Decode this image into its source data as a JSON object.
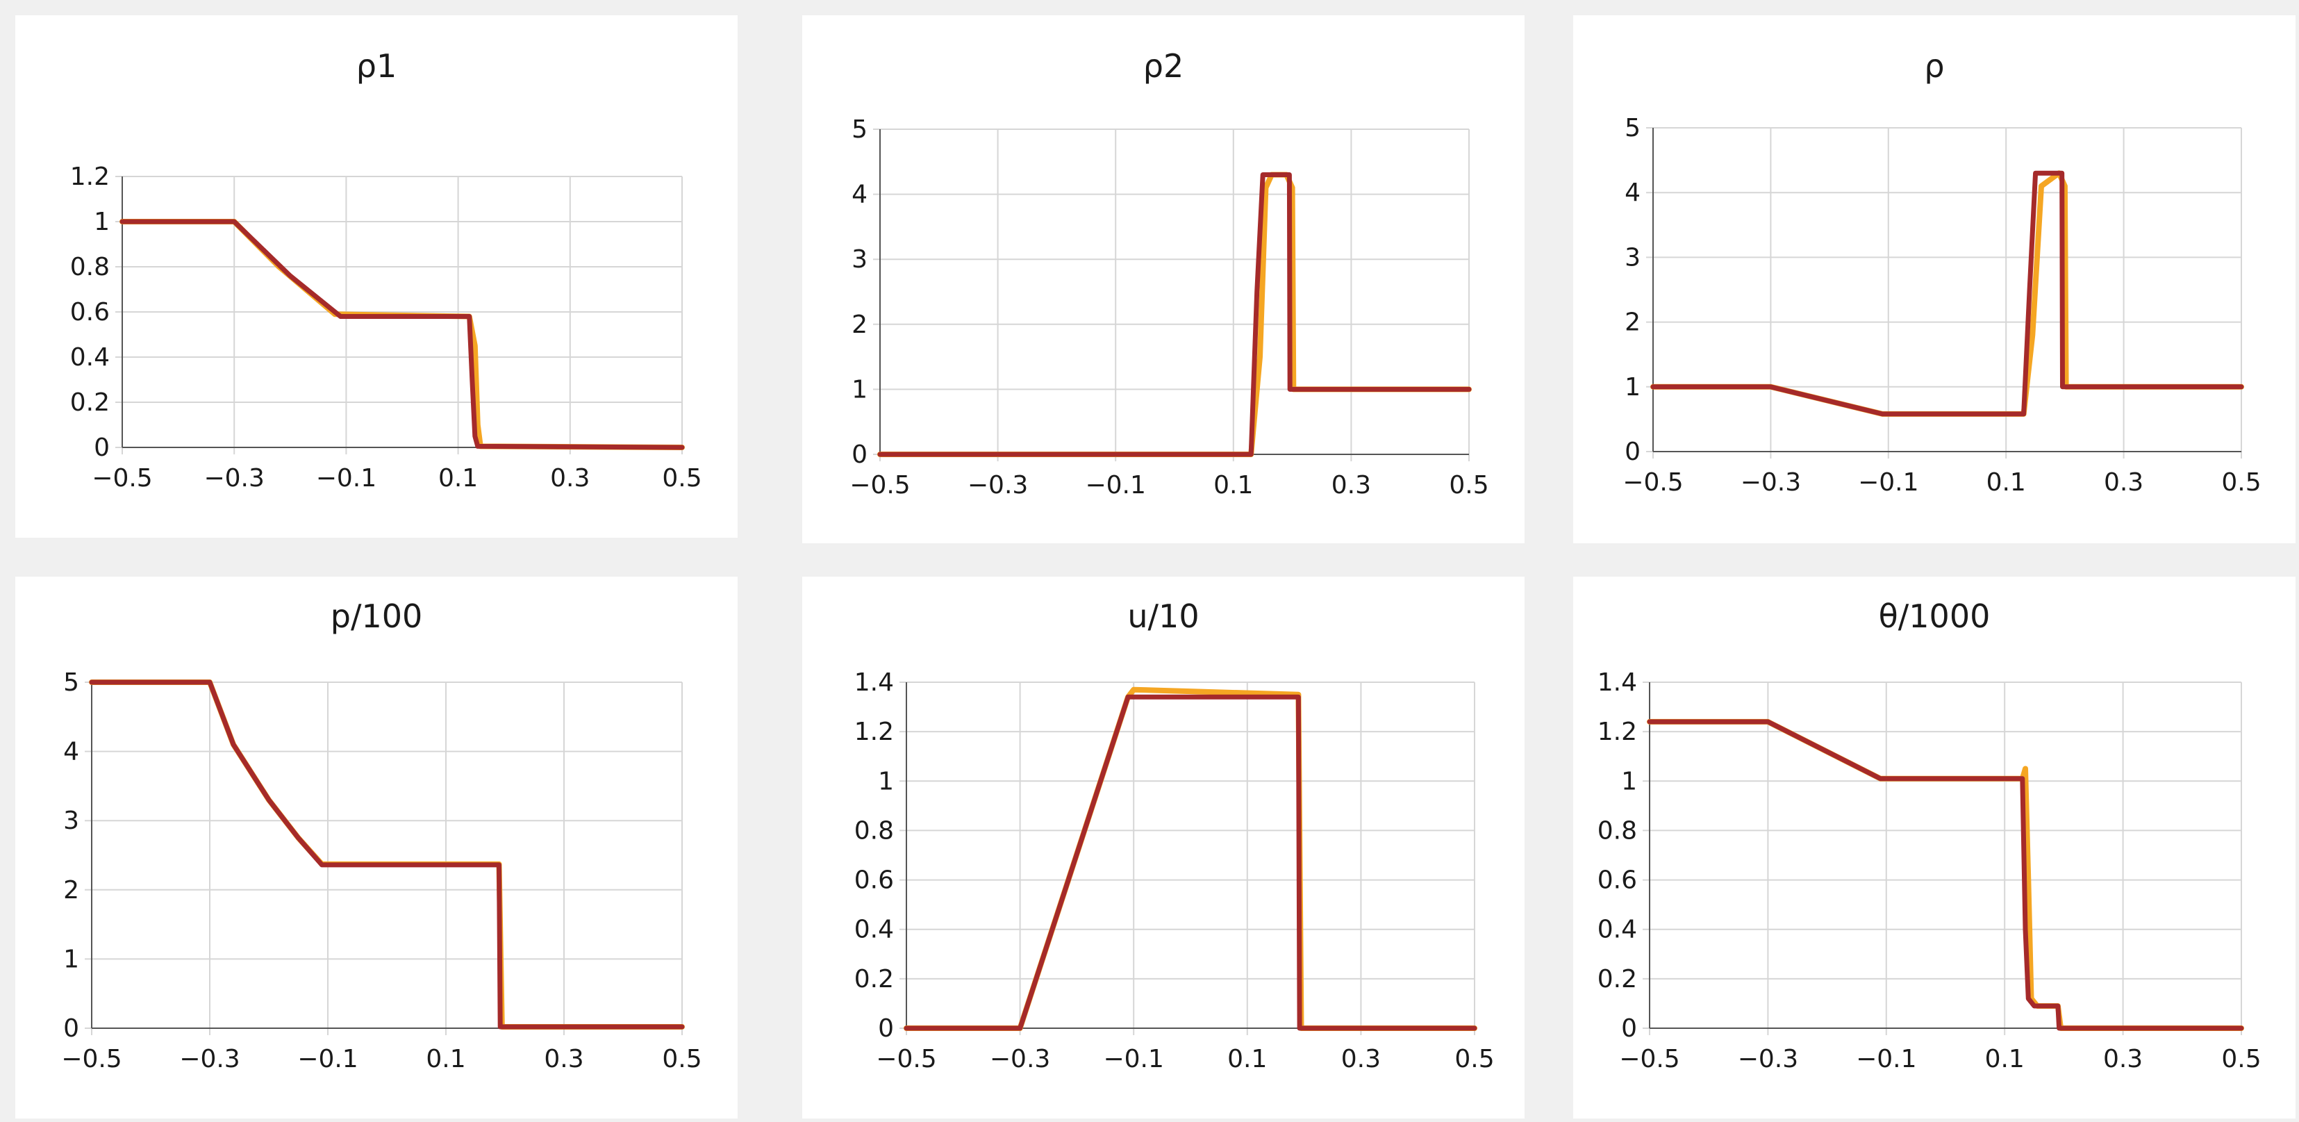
{
  "colors": {
    "background": "#f0f0f0",
    "panel": "#ffffff",
    "grid": "#d6d6d6",
    "axis": "#555555",
    "line_main": "#a52a2a",
    "line_secondary": "#f5a623"
  },
  "chart_data": [
    {
      "type": "line",
      "title": "ρ1",
      "xlim": [
        -0.5,
        0.5
      ],
      "xticks": [
        "-0.5",
        "-0.3",
        "-0.1",
        "0.1",
        "0.3",
        "0.5"
      ],
      "ylim": [
        0,
        1.2
      ],
      "yticks": [
        "0",
        "0.2",
        "0.4",
        "0.6",
        "0.8",
        "1",
        "1.2"
      ],
      "grid": true,
      "series": [
        {
          "color": "#f5a623",
          "x": [
            -0.5,
            -0.3,
            -0.22,
            -0.12,
            0.12,
            0.13,
            0.135,
            0.14,
            0.5
          ],
          "y": [
            1,
            1,
            0.8,
            0.59,
            0.58,
            0.45,
            0.1,
            0.005,
            0
          ]
        },
        {
          "color": "#a52a2a",
          "x": [
            -0.5,
            -0.3,
            -0.2,
            -0.11,
            0.12,
            0.125,
            0.13,
            0.135,
            0.5
          ],
          "y": [
            1,
            1,
            0.76,
            0.58,
            0.58,
            0.3,
            0.05,
            0.005,
            0
          ]
        }
      ]
    },
    {
      "type": "line",
      "title": "ρ2",
      "xlim": [
        -0.5,
        0.5
      ],
      "xticks": [
        "-0.5",
        "-0.3",
        "-0.1",
        "0.1",
        "0.3",
        "0.5"
      ],
      "ylim": [
        0,
        5
      ],
      "yticks": [
        "0",
        "1",
        "2",
        "3",
        "4",
        "5"
      ],
      "grid": true,
      "series": [
        {
          "color": "#f5a623",
          "x": [
            -0.5,
            0.13,
            0.145,
            0.155,
            0.165,
            0.19,
            0.2,
            0.202,
            0.5
          ],
          "y": [
            0,
            0,
            1.5,
            4.1,
            4.3,
            4.3,
            4.1,
            1,
            1
          ]
        },
        {
          "color": "#a52a2a",
          "x": [
            -0.5,
            0.13,
            0.14,
            0.15,
            0.195,
            0.196,
            0.5
          ],
          "y": [
            0,
            0,
            2.5,
            4.3,
            4.3,
            1,
            1
          ]
        }
      ]
    },
    {
      "type": "line",
      "title": "ρ",
      "xlim": [
        -0.5,
        0.5
      ],
      "xticks": [
        "-0.5",
        "-0.3",
        "-0.1",
        "0.1",
        "0.3",
        "0.5"
      ],
      "ylim": [
        0,
        5
      ],
      "yticks": [
        "0",
        "1",
        "2",
        "3",
        "4",
        "5"
      ],
      "grid": true,
      "series": [
        {
          "color": "#f5a623",
          "x": [
            -0.5,
            -0.3,
            -0.11,
            0.13,
            0.145,
            0.16,
            0.19,
            0.2,
            0.202,
            0.5
          ],
          "y": [
            1,
            1,
            0.58,
            0.58,
            1.8,
            4.1,
            4.3,
            4.1,
            1,
            1
          ]
        },
        {
          "color": "#a52a2a",
          "x": [
            -0.5,
            -0.3,
            -0.11,
            0.13,
            0.14,
            0.15,
            0.195,
            0.196,
            0.5
          ],
          "y": [
            1,
            1,
            0.58,
            0.58,
            2.5,
            4.3,
            4.3,
            1,
            1
          ]
        }
      ]
    },
    {
      "type": "line",
      "title": "p/100",
      "xlim": [
        -0.5,
        0.5
      ],
      "xticks": [
        "-0.5",
        "-0.3",
        "-0.1",
        "0.1",
        "0.3",
        "0.5"
      ],
      "ylim": [
        0,
        5
      ],
      "yticks": [
        "0",
        "1",
        "2",
        "3",
        "4",
        "5"
      ],
      "grid": true,
      "series": [
        {
          "color": "#f5a623",
          "x": [
            -0.5,
            -0.3,
            -0.26,
            -0.2,
            -0.15,
            -0.11,
            0.19,
            0.195,
            0.5
          ],
          "y": [
            5,
            5,
            4.1,
            3.3,
            2.75,
            2.37,
            2.37,
            0.02,
            0.02
          ]
        },
        {
          "color": "#a52a2a",
          "x": [
            -0.5,
            -0.3,
            -0.26,
            -0.2,
            -0.15,
            -0.11,
            0.19,
            0.192,
            0.5
          ],
          "y": [
            5,
            5,
            4.1,
            3.3,
            2.75,
            2.36,
            2.36,
            0.02,
            0.02
          ]
        }
      ]
    },
    {
      "type": "line",
      "title": "u/10",
      "xlim": [
        -0.5,
        0.5
      ],
      "xticks": [
        "-0.5",
        "-0.3",
        "-0.1",
        "0.1",
        "0.3",
        "0.5"
      ],
      "ylim": [
        0,
        1.4
      ],
      "yticks": [
        "0",
        "0.2",
        "0.4",
        "0.6",
        "0.8",
        "1",
        "1.2",
        "1.4"
      ],
      "grid": true,
      "series": [
        {
          "color": "#f5a623",
          "x": [
            -0.5,
            -0.3,
            -0.11,
            -0.1,
            0.19,
            0.195,
            0.5
          ],
          "y": [
            0,
            0,
            1.34,
            1.37,
            1.35,
            0,
            0
          ]
        },
        {
          "color": "#a52a2a",
          "x": [
            -0.5,
            -0.3,
            -0.11,
            0.19,
            0.192,
            0.5
          ],
          "y": [
            0,
            0,
            1.34,
            1.34,
            0,
            0
          ]
        }
      ]
    },
    {
      "type": "line",
      "title": "θ/1000",
      "xlim": [
        -0.5,
        0.5
      ],
      "xticks": [
        "-0.5",
        "-0.3",
        "-0.1",
        "0.1",
        "0.3",
        "0.5"
      ],
      "ylim": [
        0,
        1.4
      ],
      "yticks": [
        "0",
        "0.2",
        "0.4",
        "0.6",
        "0.8",
        "1",
        "1.2",
        "1.4"
      ],
      "grid": true,
      "series": [
        {
          "color": "#f5a623",
          "x": [
            -0.5,
            -0.3,
            -0.11,
            0.13,
            0.135,
            0.14,
            0.145,
            0.155,
            0.19,
            0.195,
            0.5
          ],
          "y": [
            1.24,
            1.24,
            1.01,
            1.01,
            1.05,
            0.6,
            0.12,
            0.09,
            0.09,
            0,
            0
          ]
        },
        {
          "color": "#a52a2a",
          "x": [
            -0.5,
            -0.3,
            -0.11,
            0.13,
            0.135,
            0.14,
            0.15,
            0.19,
            0.192,
            0.5
          ],
          "y": [
            1.24,
            1.24,
            1.01,
            1.01,
            0.4,
            0.12,
            0.09,
            0.09,
            0,
            0
          ]
        }
      ]
    }
  ]
}
